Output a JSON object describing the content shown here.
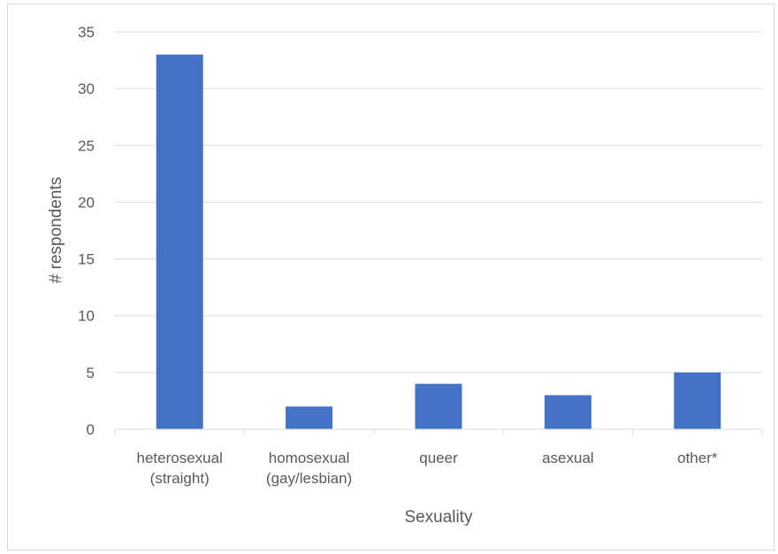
{
  "chart_data": {
    "type": "bar",
    "categories": [
      [
        "heterosexual",
        "(straight)"
      ],
      [
        "homosexual",
        "(gay/lesbian)"
      ],
      [
        "queer"
      ],
      [
        "asexual"
      ],
      [
        "other*"
      ]
    ],
    "values": [
      33,
      2,
      4,
      3,
      5
    ],
    "xlabel": "Sexuality",
    "ylabel": "# respondents",
    "ylim": [
      0,
      35
    ],
    "yticks": [
      0,
      5,
      10,
      15,
      20,
      25,
      30,
      35
    ],
    "grid": true,
    "bar_color": "#4472C4",
    "grid_color": "#d9d9d9"
  }
}
